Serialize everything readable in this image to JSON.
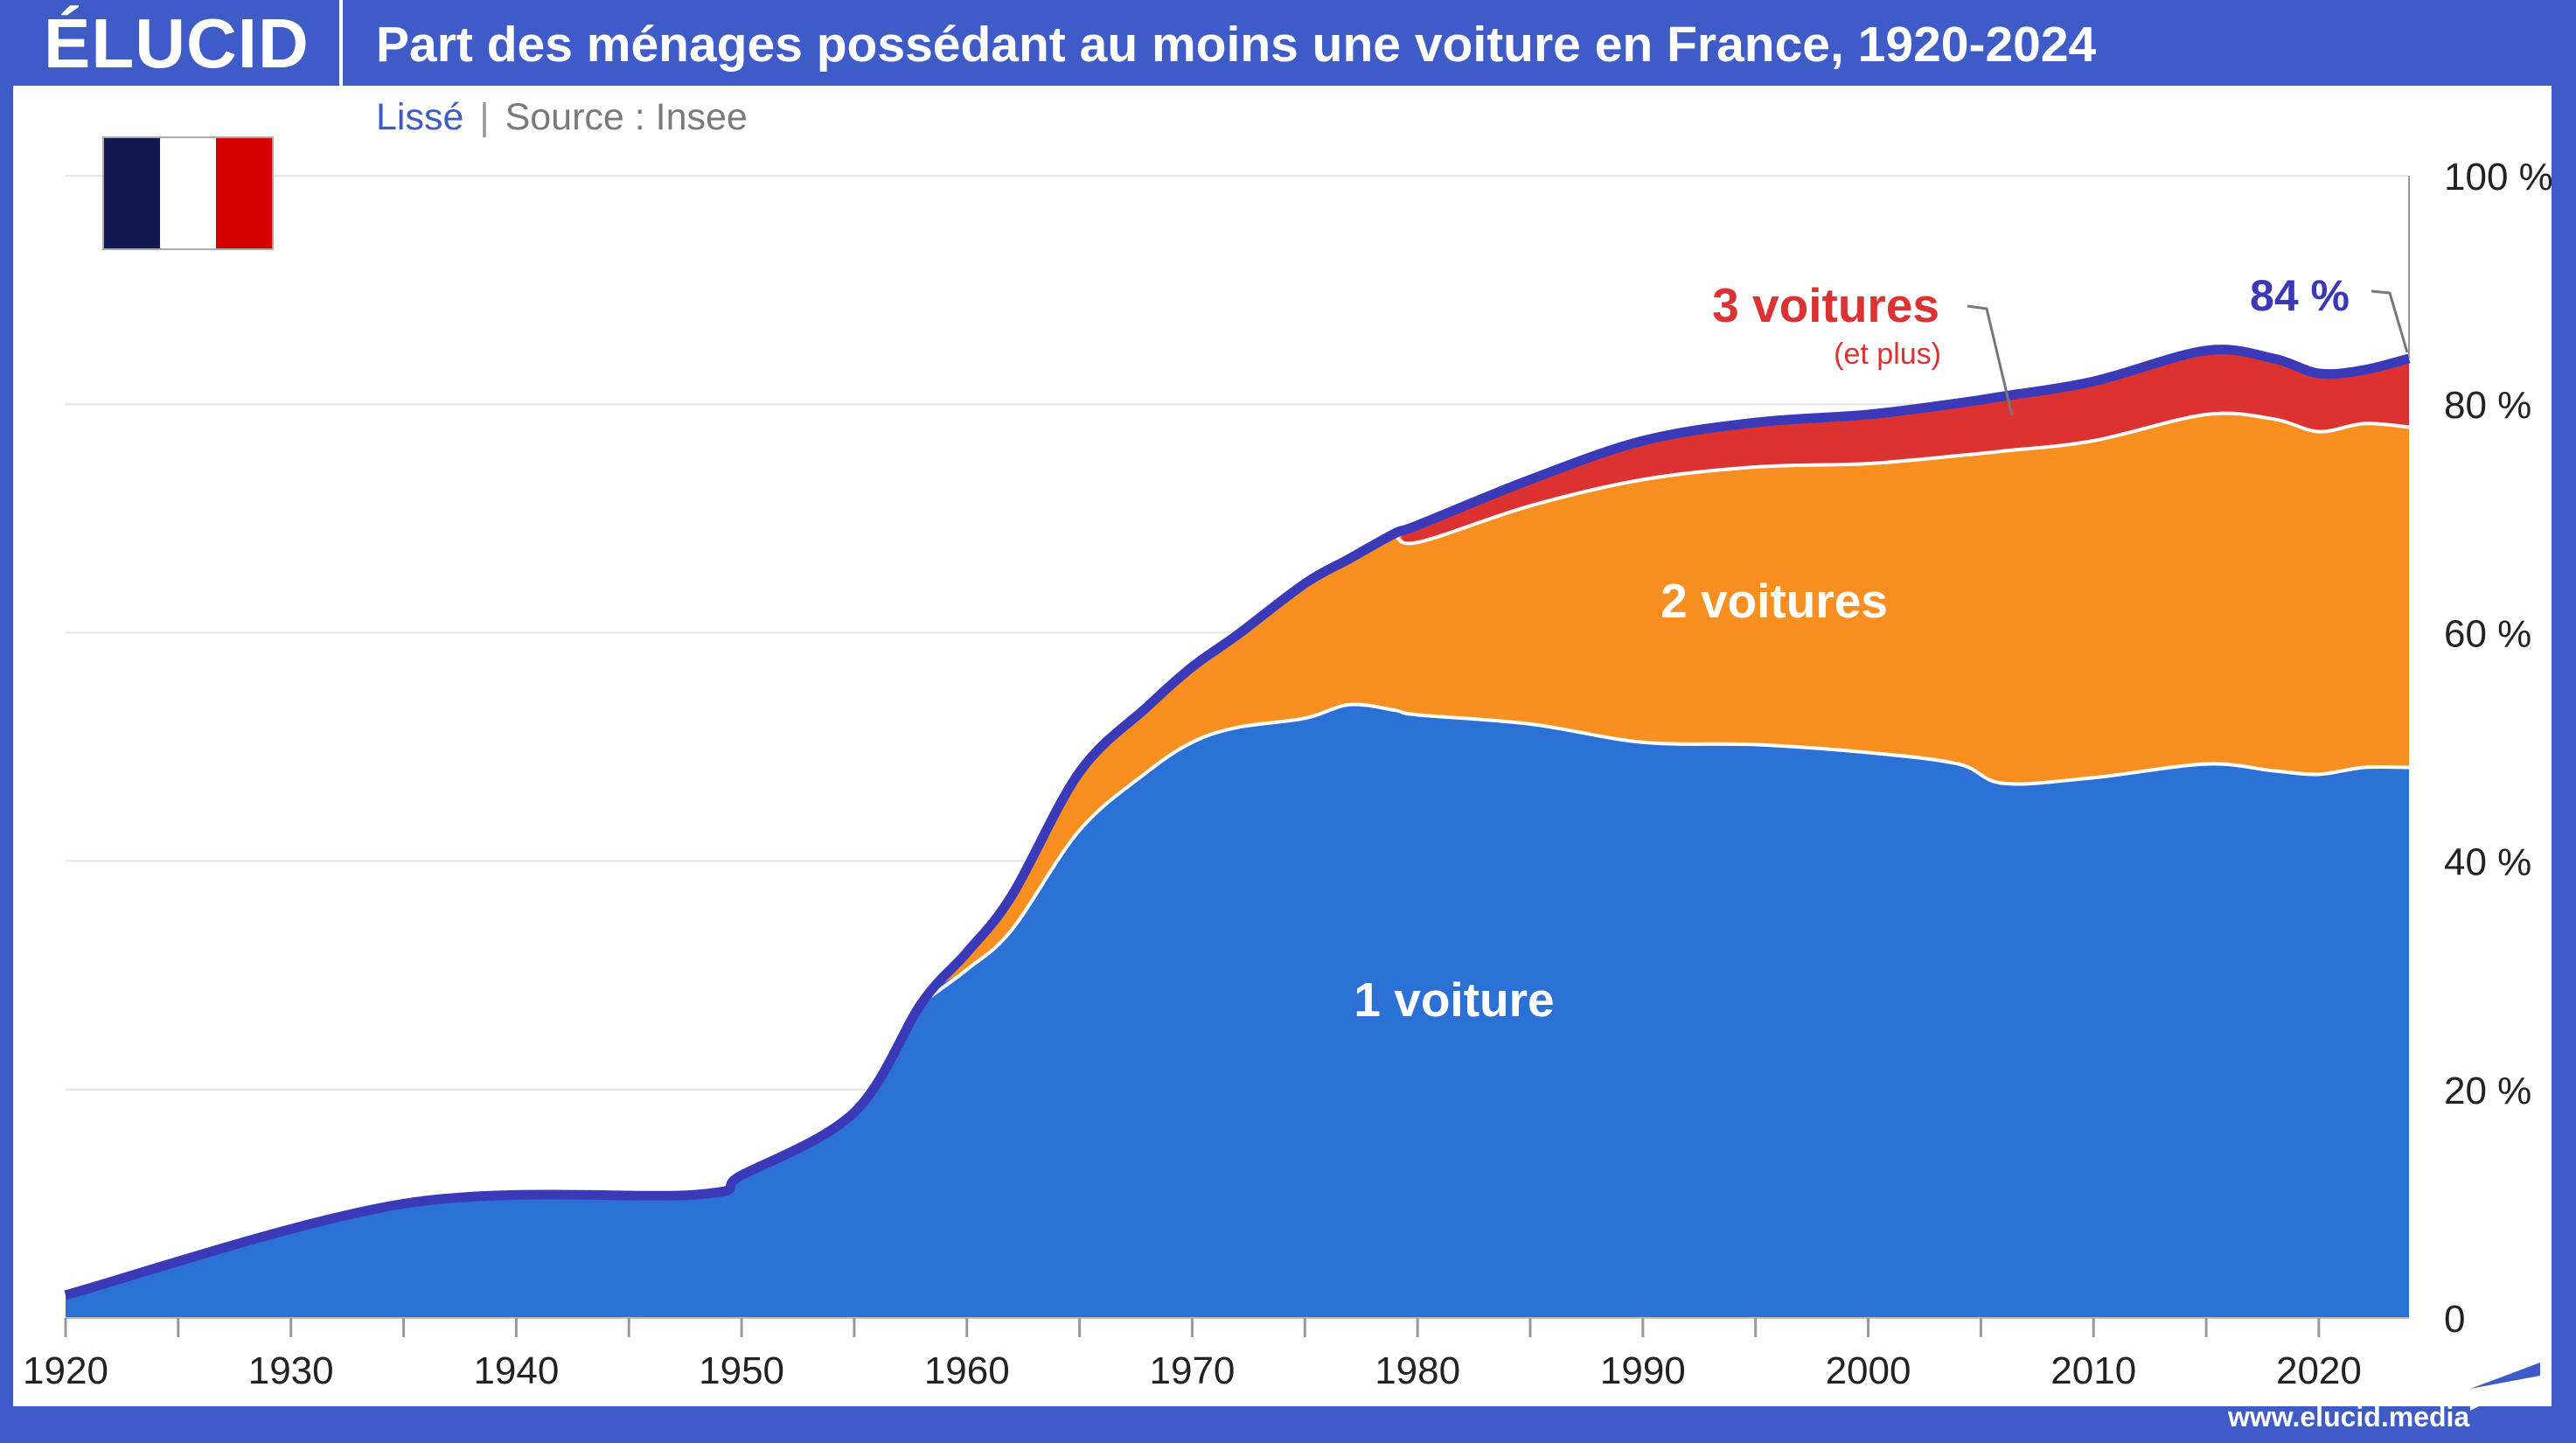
{
  "header": {
    "logo": "ÉLUCID",
    "title": "Part des ménages possédant au moins une voiture en France, 1920-2024"
  },
  "subtitle": {
    "smoothing": "Lissé",
    "separator": "|",
    "source": "Source : Insee"
  },
  "flag": {
    "icon": "france-flag-icon",
    "colors": [
      "#141852",
      "#ffffff",
      "#d40000"
    ]
  },
  "footer": {
    "url": "www.elucid.media"
  },
  "colors": {
    "frame": "#3f5bc8",
    "one_car": "#2b70d4",
    "two_cars": "#f88f20",
    "three_cars": "#dc3232",
    "total_line": "#3a3ab8"
  },
  "chart_data": {
    "type": "area",
    "stacked": true,
    "title": "Part des ménages possédant au moins une voiture en France, 1920-2024",
    "xlim": [
      1920,
      2024
    ],
    "ylim": [
      0,
      100
    ],
    "x_ticks": [
      1920,
      1930,
      1940,
      1950,
      1960,
      1970,
      1980,
      1990,
      2000,
      2010,
      2020
    ],
    "y_ticks": [
      "0",
      "20 %",
      "40 %",
      "60 %",
      "80 %",
      "100 %"
    ],
    "y_tick_values": [
      0,
      20,
      40,
      60,
      80,
      100
    ],
    "y_axis_side": "right",
    "grid": "horizontal",
    "x": [
      1920,
      1935,
      1948,
      1950,
      1955,
      1958,
      1960,
      1962,
      1965,
      1968,
      1970,
      1972,
      1975,
      1977,
      1979,
      1980,
      1985,
      1990,
      1995,
      2000,
      2004,
      2006,
      2010,
      2015,
      2018,
      2020,
      2022,
      2024
    ],
    "series": [
      {
        "name": "1 voiture",
        "values": [
          2,
          10,
          10.8,
          12.5,
          18,
          27.6,
          30.5,
          34,
          42.7,
          47.8,
          50.4,
          51.7,
          52.5,
          53.7,
          53.2,
          52.8,
          52,
          50.4,
          50.2,
          49.5,
          48.5,
          46.8,
          47.3,
          48.5,
          47.9,
          47.6,
          48.2,
          48.2
        ]
      },
      {
        "name": "2 voitures",
        "values": [
          0,
          0,
          0,
          0,
          0,
          0,
          1.5,
          3,
          5.1,
          5.7,
          6.6,
          8.1,
          11.8,
          12.8,
          15.5,
          15.1,
          19.1,
          23,
          24.3,
          25.3,
          27,
          29.1,
          29.5,
          30.6,
          30.8,
          30,
          30.1,
          29.8
        ]
      },
      {
        "name": "3 voitures",
        "sublabel": "(et plus)",
        "values": [
          0,
          0,
          0,
          0,
          0,
          0,
          0,
          0,
          0,
          0,
          0,
          0,
          0,
          0,
          0,
          1.5,
          2.3,
          3.4,
          3.9,
          4.3,
          4.6,
          4.8,
          5.2,
          5.6,
          5.3,
          5.1,
          4.7,
          6
        ]
      }
    ],
    "annotations": [
      {
        "text": "84 %",
        "x": 2024,
        "y": 84
      }
    ]
  }
}
